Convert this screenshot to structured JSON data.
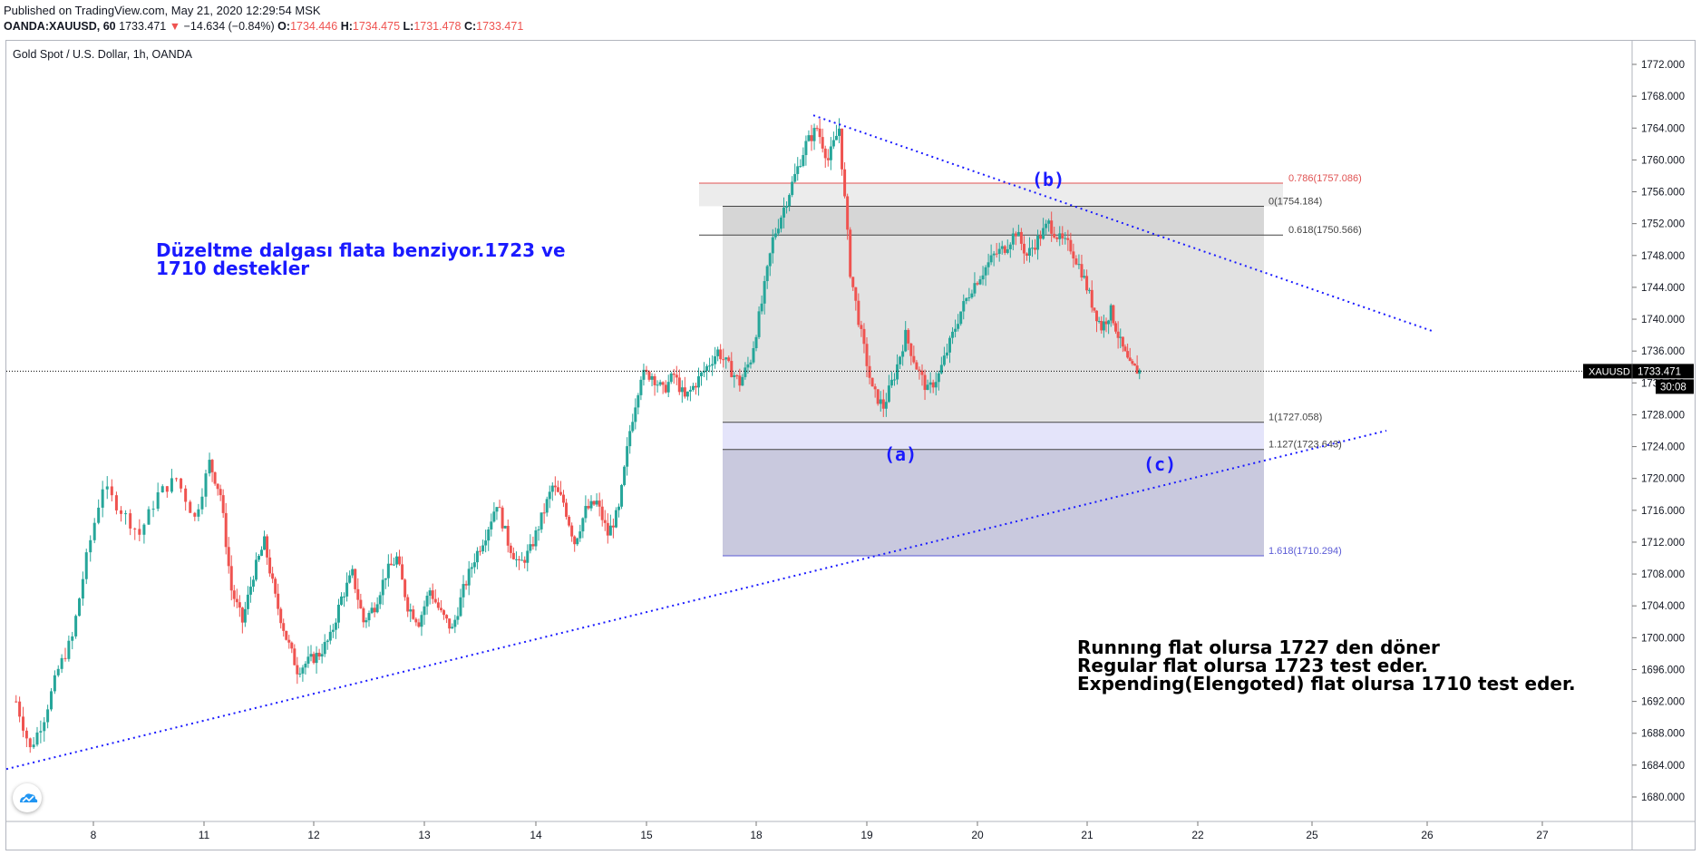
{
  "header": {
    "published": "Published on TradingView.com, May 21, 2020 12:29:54 MSK",
    "symbol": "OANDA:XAUUSD, 60",
    "last": "1733.471",
    "change": "−14.634 (−0.84%)",
    "o_label": "O:",
    "o_value": "1734.446",
    "h_label": "H:",
    "h_value": "1734.475",
    "l_label": "L:",
    "l_value": "1731.478",
    "c_label": "C:",
    "c_value": "1733.471"
  },
  "colors": {
    "up": "#26a69a",
    "down": "#ef5350",
    "trend": "#1a1aff",
    "fib_red": "#e05252",
    "fib_gray": "#444444",
    "fib_blue": "#5b5bd6"
  },
  "annotations": {
    "title_line1": "Düzeltme dalgası flata benziyor.1723 ve",
    "title_line2": "1710 destekler",
    "note_line1": "Runnıng flat olursa 1727 den döner",
    "note_line2": "Regular flat olursa 1723 test eder.",
    "note_line3": "Expending(Elengoted) flat olursa 1710 test eder.",
    "wave_a": "(a)",
    "wave_b": "(b)",
    "wave_c": "(c)"
  },
  "chart_data": {
    "type": "candlestick",
    "title": "Gold Spot / U.S. Dollar, 1h, OANDA",
    "ylim": [
      1677,
      1776
    ],
    "y_ticks": [
      "1680.000",
      "1684.000",
      "1688.000",
      "1692.000",
      "1696.000",
      "1700.000",
      "1704.000",
      "1708.000",
      "1712.000",
      "1716.000",
      "1720.000",
      "1724.000",
      "1728.000",
      "1732.000",
      "1736.000",
      "1740.000",
      "1744.000",
      "1748.000",
      "1752.000",
      "1756.000",
      "1760.000",
      "1764.000",
      "1768.000",
      "1772.000"
    ],
    "x_ticks": [
      "8",
      "11",
      "12",
      "13",
      "14",
      "15",
      "18",
      "19",
      "20",
      "21",
      "22",
      "25",
      "26",
      "27"
    ],
    "price_label": {
      "symbol": "XAUUSD",
      "value": "1733.471",
      "countdown": "30:08"
    },
    "last_price": 1733.471,
    "fib_levels": [
      {
        "label": "0.786(1757.086)",
        "price": 1757.086
      },
      {
        "label": "0(1754.184)",
        "price": 1754.184
      },
      {
        "label": "0.618(1750.566)",
        "price": 1750.566
      },
      {
        "label": "1(1727.058)",
        "price": 1727.058
      },
      {
        "label": "1.127(1723.643)",
        "price": 1723.643
      },
      {
        "label": "1.618(1710.294)",
        "price": 1710.294
      }
    ],
    "trendlines": [
      {
        "from": [
          "7",
          1683.5
        ],
        "to": [
          "26",
          1726.0
        ]
      },
      {
        "from": [
          "18",
          1765.6
        ],
        "to": [
          "26",
          1738.5
        ]
      }
    ],
    "price_path": [
      [
        "7",
        1692
      ],
      [
        "7",
        1686
      ],
      [
        "7",
        1690
      ],
      [
        "7",
        1696
      ],
      [
        "7",
        1700
      ],
      [
        "7",
        1710
      ],
      [
        "8",
        1719
      ],
      [
        "8",
        1716
      ],
      [
        "8",
        1713
      ],
      [
        "8",
        1718
      ],
      [
        "8",
        1720
      ],
      [
        "8",
        1715
      ],
      [
        "11",
        1722
      ],
      [
        "11",
        1718
      ],
      [
        "11",
        1706
      ],
      [
        "11",
        1702
      ],
      [
        "11",
        1708
      ],
      [
        "11",
        1712
      ],
      [
        "11",
        1705
      ],
      [
        "11",
        1700
      ],
      [
        "11",
        1696
      ],
      [
        "11",
        1697
      ],
      [
        "12",
        1698
      ],
      [
        "12",
        1700
      ],
      [
        "12",
        1705
      ],
      [
        "12",
        1708
      ],
      [
        "12",
        1702
      ],
      [
        "12",
        1704
      ],
      [
        "12",
        1708
      ],
      [
        "12",
        1710
      ],
      [
        "12",
        1704
      ],
      [
        "12",
        1702
      ],
      [
        "13",
        1706
      ],
      [
        "13",
        1703
      ],
      [
        "13",
        1701
      ],
      [
        "13",
        1706
      ],
      [
        "13",
        1710
      ],
      [
        "13",
        1713
      ],
      [
        "13",
        1717
      ],
      [
        "13",
        1712
      ],
      [
        "13",
        1709
      ],
      [
        "13",
        1711
      ],
      [
        "14",
        1715
      ],
      [
        "14",
        1719
      ],
      [
        "14",
        1717
      ],
      [
        "14",
        1712
      ],
      [
        "14",
        1716
      ],
      [
        "14",
        1717
      ],
      [
        "14",
        1713
      ],
      [
        "14",
        1716
      ],
      [
        "14",
        1726
      ],
      [
        "14",
        1733
      ],
      [
        "15",
        1733
      ],
      [
        "15",
        1731
      ],
      [
        "15",
        1733
      ],
      [
        "15",
        1730
      ],
      [
        "15",
        1732
      ],
      [
        "15",
        1734
      ],
      [
        "15",
        1736
      ],
      [
        "15",
        1734
      ],
      [
        "15",
        1732
      ],
      [
        "15",
        1735
      ],
      [
        "18",
        1742
      ],
      [
        "18",
        1750
      ],
      [
        "18",
        1754
      ],
      [
        "18",
        1758
      ],
      [
        "18",
        1762
      ],
      [
        "18",
        1764
      ],
      [
        "18",
        1760
      ],
      [
        "18",
        1764
      ],
      [
        "18",
        1746
      ],
      [
        "18",
        1738
      ],
      [
        "19",
        1731
      ],
      [
        "19",
        1729
      ],
      [
        "19",
        1733
      ],
      [
        "19",
        1738
      ],
      [
        "19",
        1734
      ],
      [
        "19",
        1731
      ],
      [
        "19",
        1733
      ],
      [
        "19",
        1737
      ],
      [
        "19",
        1741
      ],
      [
        "19",
        1744
      ],
      [
        "20",
        1746
      ],
      [
        "20",
        1748
      ],
      [
        "20",
        1749
      ],
      [
        "20",
        1751
      ],
      [
        "20",
        1748
      ],
      [
        "20",
        1750
      ],
      [
        "20",
        1752
      ],
      [
        "20",
        1750
      ],
      [
        "20",
        1749
      ],
      [
        "20",
        1746
      ],
      [
        "21",
        1742
      ],
      [
        "21",
        1739
      ],
      [
        "21",
        1741
      ],
      [
        "21",
        1737
      ],
      [
        "21",
        1734
      ],
      [
        "21",
        1733.471
      ]
    ]
  }
}
